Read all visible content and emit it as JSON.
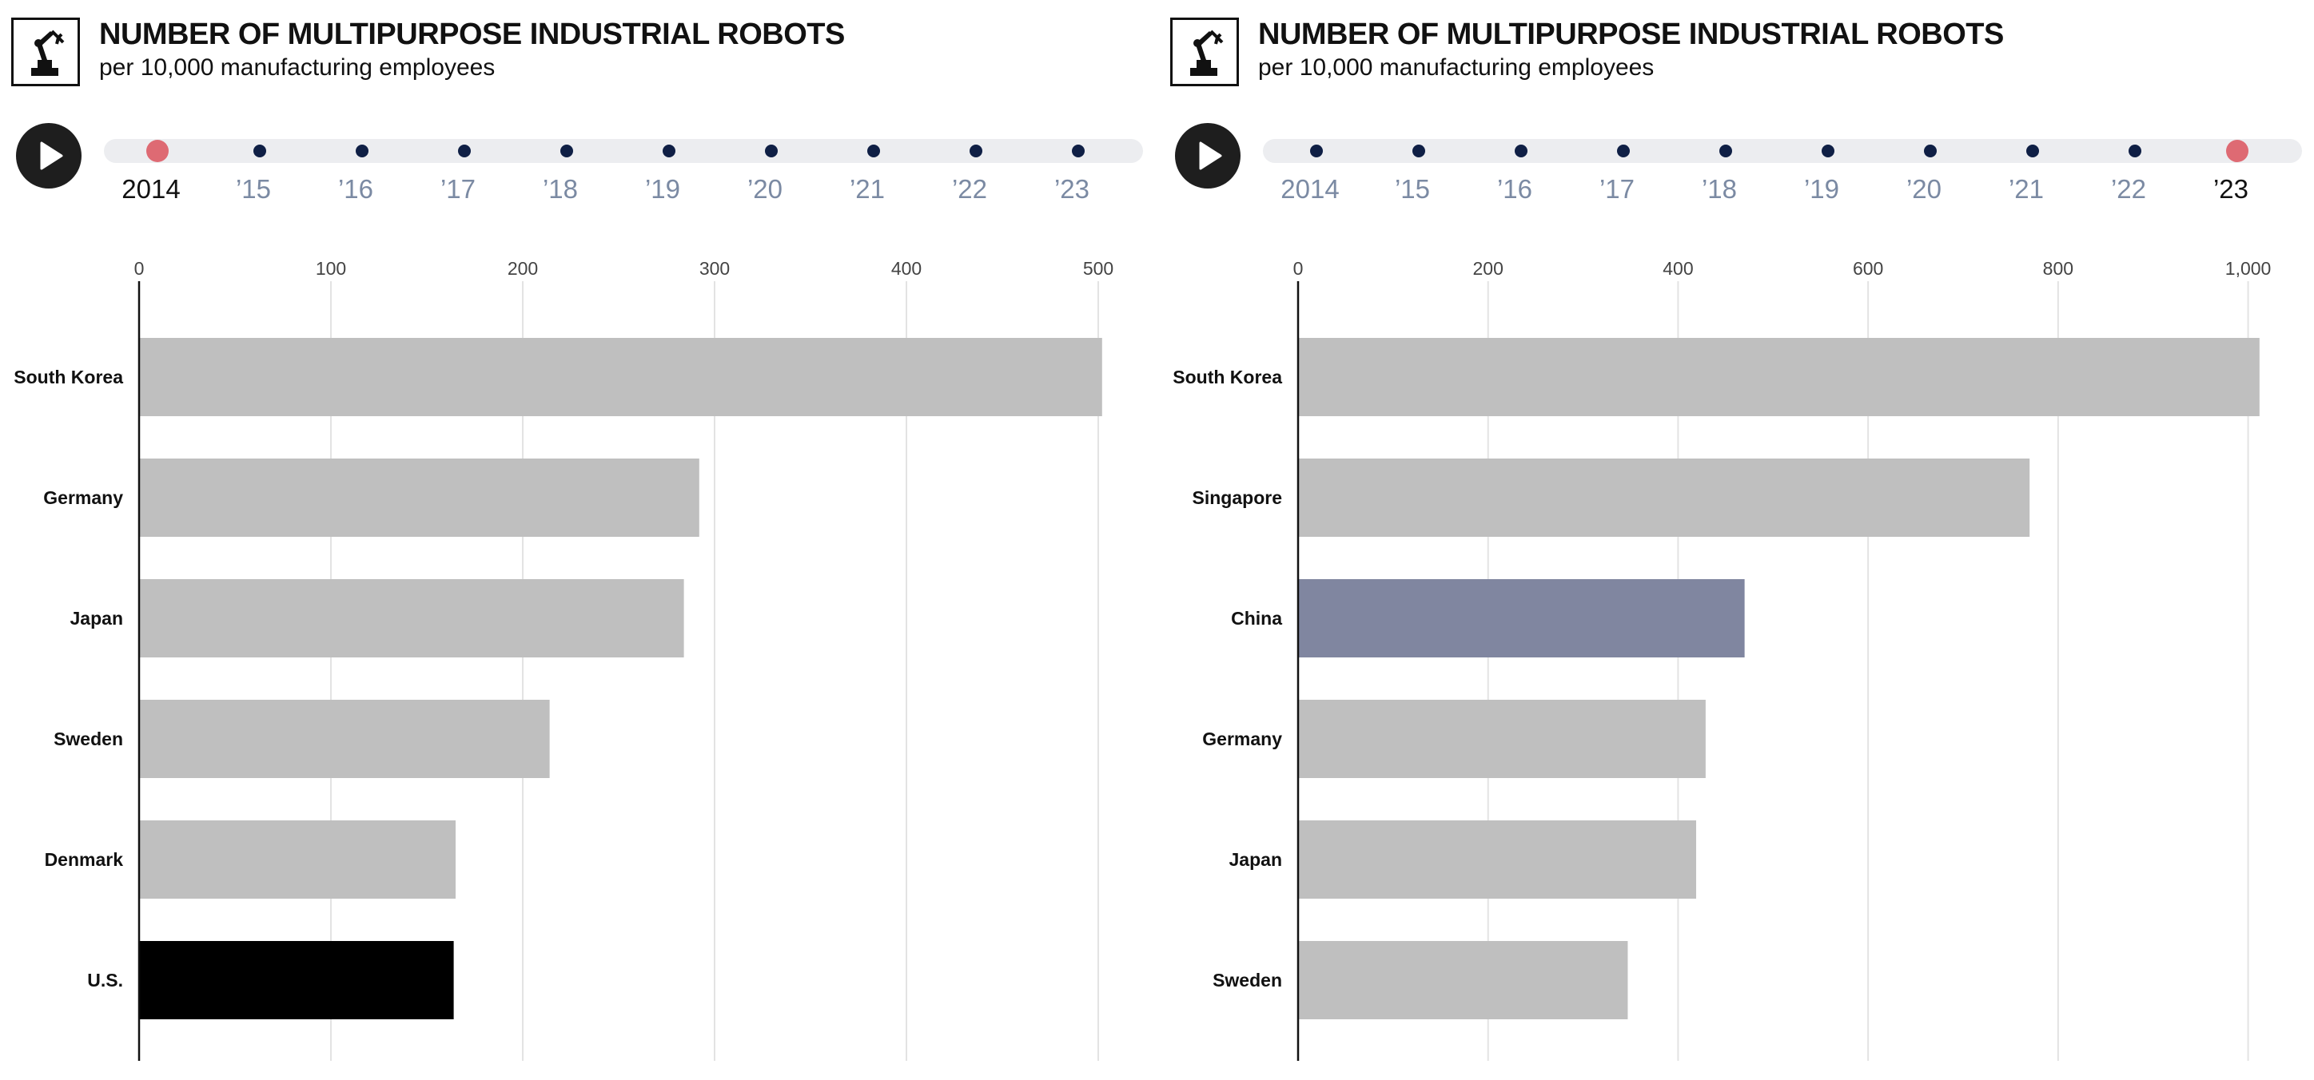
{
  "panels": [
    {
      "title": "NUMBER OF MULTIPURPOSE INDUSTRIAL ROBOTS",
      "subtitle": "per 10,000 manufacturing employees",
      "icon": "robot-arm-icon",
      "play_icon": "play-icon",
      "timeline": {
        "years": [
          "2014",
          "’15",
          "’16",
          "’17",
          "’18",
          "’19",
          "’20",
          "’21",
          "’22",
          "’23"
        ],
        "selected_index": 0
      }
    },
    {
      "title": "NUMBER OF MULTIPURPOSE INDUSTRIAL ROBOTS",
      "subtitle": "per 10,000 manufacturing employees",
      "icon": "robot-arm-icon",
      "play_icon": "play-icon",
      "timeline": {
        "years": [
          "2014",
          "’15",
          "’16",
          "’17",
          "’18",
          "’19",
          "’20",
          "’21",
          "’22",
          "’23"
        ],
        "selected_index": 9
      }
    }
  ],
  "colors": {
    "bar_default": "#bfbfbf",
    "highlight_us": "#000000",
    "highlight_china": "#8086a0",
    "timeline_dot": "#0f1f45",
    "timeline_selected": "#de6a73",
    "track": "#ecedf0"
  },
  "chart_data": [
    {
      "type": "bar",
      "orientation": "horizontal",
      "year": "2014",
      "categories": [
        "South Korea",
        "Germany",
        "Japan",
        "Sweden",
        "Denmark",
        "U.S."
      ],
      "values": [
        502,
        292,
        284,
        214,
        165,
        164
      ],
      "highlight": {
        "U.S.": "#000000"
      },
      "xlim": [
        0,
        520
      ],
      "xticks": [
        0,
        100,
        200,
        300,
        400,
        500
      ],
      "xtick_labels": [
        "0",
        "100",
        "200",
        "300",
        "400",
        "500"
      ],
      "grid": true
    },
    {
      "type": "bar",
      "orientation": "horizontal",
      "year": "’23",
      "categories": [
        "South Korea",
        "Singapore",
        "China",
        "Germany",
        "Japan",
        "Sweden"
      ],
      "values": [
        1012,
        770,
        470,
        429,
        419,
        347
      ],
      "highlight": {
        "China": "#8086a0"
      },
      "xlim": [
        0,
        1050
      ],
      "xticks": [
        0,
        200,
        400,
        600,
        800,
        1000
      ],
      "xtick_labels": [
        "0",
        "200",
        "400",
        "600",
        "800",
        "1,000"
      ],
      "grid": true
    }
  ]
}
